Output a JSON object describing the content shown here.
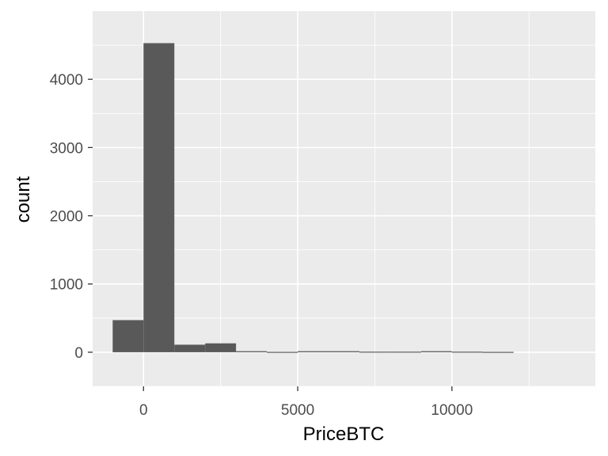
{
  "chart_data": {
    "type": "bar",
    "subtype": "histogram",
    "title": "",
    "xlabel": "PriceBTC",
    "ylabel": "count",
    "xlim": [
      -1650,
      14650
    ],
    "ylim": [
      -500,
      5000
    ],
    "x_ticks": [
      0,
      5000,
      10000
    ],
    "x_tick_labels": [
      "0",
      "5000",
      "10000"
    ],
    "y_ticks": [
      0,
      1000,
      2000,
      3000,
      4000
    ],
    "y_tick_labels": [
      "0",
      "1000",
      "2000",
      "3000",
      "4000"
    ],
    "grid": true,
    "background": "#ebebeb",
    "bar_color": "#595959",
    "grid_color": "#ffffff",
    "bins": [
      {
        "x0": -1000,
        "x1": 0,
        "count": 470
      },
      {
        "x0": 0,
        "x1": 1000,
        "count": 4530
      },
      {
        "x0": 1000,
        "x1": 2000,
        "count": 110
      },
      {
        "x0": 2000,
        "x1": 3000,
        "count": 130
      },
      {
        "x0": 3000,
        "x1": 4000,
        "count": 15
      },
      {
        "x0": 4000,
        "x1": 5000,
        "count": 5
      },
      {
        "x0": 5000,
        "x1": 6000,
        "count": 15
      },
      {
        "x0": 6000,
        "x1": 7000,
        "count": 15
      },
      {
        "x0": 7000,
        "x1": 8000,
        "count": 8
      },
      {
        "x0": 8000,
        "x1": 9000,
        "count": 8
      },
      {
        "x0": 9000,
        "x1": 10000,
        "count": 15
      },
      {
        "x0": 10000,
        "x1": 11000,
        "count": 8
      },
      {
        "x0": 11000,
        "x1": 12000,
        "count": 5
      },
      {
        "x0": 12000,
        "x1": 13000,
        "count": 0
      },
      {
        "x0": 13000,
        "x1": 14000,
        "count": 0
      }
    ]
  }
}
